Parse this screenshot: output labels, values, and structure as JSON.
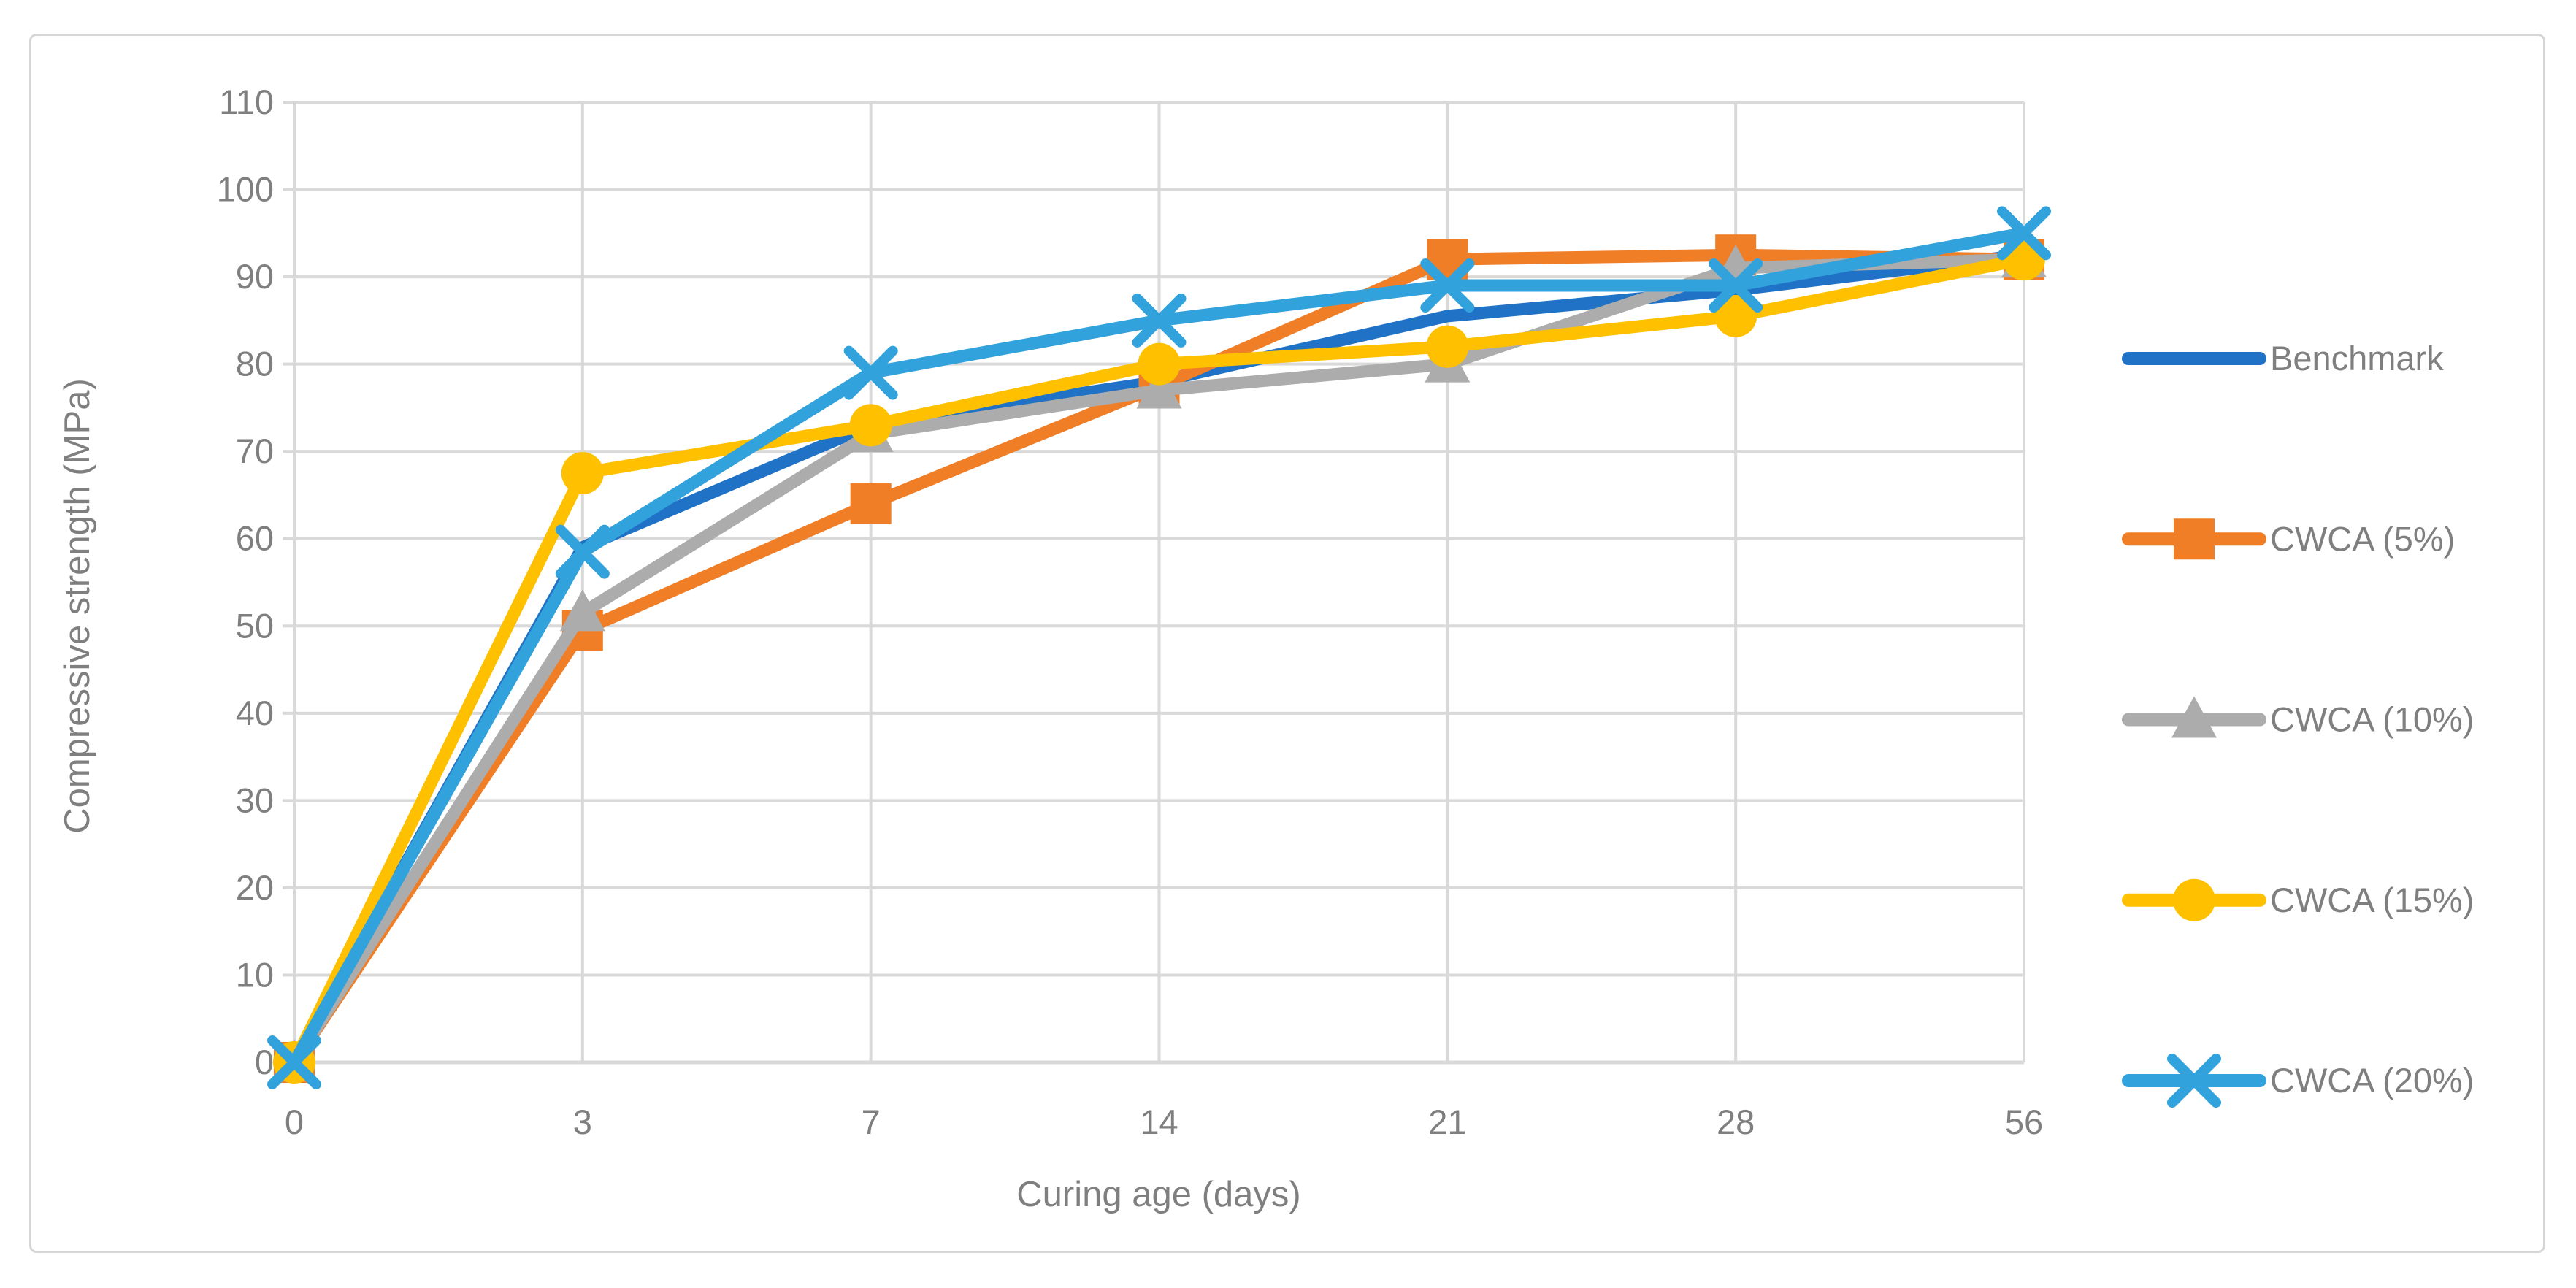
{
  "chart_data": {
    "type": "line",
    "title": "",
    "xlabel": "Curing age (days)",
    "ylabel": "Compressive strength (MPa)",
    "categories": [
      "0",
      "3",
      "7",
      "14",
      "21",
      "28",
      "56"
    ],
    "y_min": 0,
    "y_max": 110,
    "y_step": 10,
    "grid": true,
    "legend_position": "right",
    "series": [
      {
        "name": "Benchmark",
        "color": "#1F72C6",
        "marker": "none",
        "values": [
          0,
          59,
          73,
          78,
          85.5,
          88.5,
          92.5
        ]
      },
      {
        "name": "CWCA (5%)",
        "color": "#F07E27",
        "marker": "square",
        "values": [
          0,
          49.5,
          64,
          77.5,
          92,
          92.5,
          92
        ]
      },
      {
        "name": "CWCA (10%)",
        "color": "#ACACAC",
        "marker": "triangle",
        "values": [
          0,
          51.5,
          72,
          77,
          80,
          91,
          92
        ]
      },
      {
        "name": "CWCA (15%)",
        "color": "#FFC000",
        "marker": "circle",
        "values": [
          0,
          67.5,
          73,
          80,
          82,
          85.5,
          92
        ]
      },
      {
        "name": "CWCA (20%)",
        "color": "#32A2DC",
        "marker": "x",
        "values": [
          0,
          58.5,
          79,
          85,
          89,
          89,
          95
        ]
      }
    ],
    "colors": {
      "gridline": "#D9D9D9",
      "axis_line": "#D9D9D9",
      "tick_text": "#7F7F7F",
      "axis_title_text": "#7F7F7F",
      "legend_text": "#7F7F7F",
      "chart_border": "#D6D6D6"
    }
  }
}
